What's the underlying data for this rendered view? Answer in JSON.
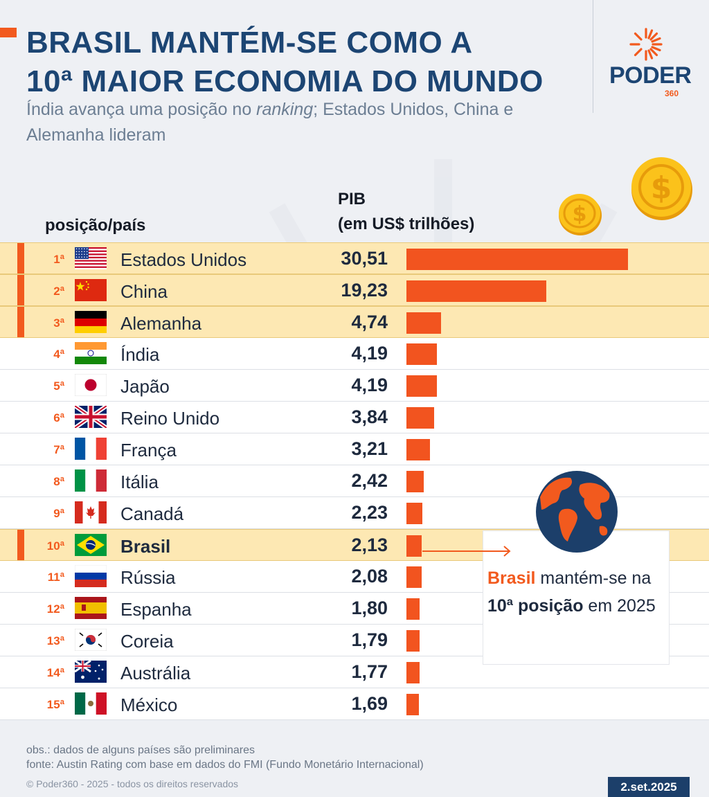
{
  "header": {
    "title_line1": "BRASIL MANTÉM-SE COMO A",
    "title_line2": "10ª MAIOR ECONOMIA DO MUNDO",
    "subtitle_part1": "Índia avança uma posição no ",
    "subtitle_em": "ranking",
    "subtitle_part2": "; Estados Unidos, China e Alemanha lideram"
  },
  "brand": {
    "name": "PODER",
    "number": "360",
    "color": "#f25a1e"
  },
  "icons": [
    "coin-dollar-icon",
    "globe-icon",
    "arrow-right-icon",
    "sun-logo-icon"
  ],
  "chart_data": {
    "type": "bar",
    "orientation": "horizontal",
    "column_headers": {
      "country": "posição/país",
      "value_line1": "PIB",
      "value_line2": "(em US$ trilhões)"
    },
    "categories": [
      "Estados Unidos",
      "China",
      "Alemanha",
      "Índia",
      "Japão",
      "Reino Unido",
      "França",
      "Itália",
      "Canadá",
      "Brasil",
      "Rússia",
      "Espanha",
      "Coreia",
      "Austrália",
      "México"
    ],
    "ranks": [
      "1ª",
      "2ª",
      "3ª",
      "4ª",
      "5ª",
      "6ª",
      "7ª",
      "8ª",
      "9ª",
      "10ª",
      "11ª",
      "12ª",
      "13ª",
      "14ª",
      "15ª"
    ],
    "values": [
      30.51,
      19.23,
      4.74,
      4.19,
      4.19,
      3.84,
      3.21,
      2.42,
      2.23,
      2.13,
      2.08,
      1.8,
      1.79,
      1.77,
      1.69
    ],
    "value_labels": [
      "30,51",
      "19,23",
      "4,74",
      "4,19",
      "4,19",
      "3,84",
      "3,21",
      "2,42",
      "2,23",
      "2,13",
      "2,08",
      "1,80",
      "1,79",
      "1,77",
      "1,69"
    ],
    "highlighted": [
      "Estados Unidos",
      "China",
      "Alemanha",
      "Brasil"
    ],
    "bar_color": "#f2541f",
    "highlight_color": "#fde8b3"
  },
  "callout": {
    "part1": "Brasil",
    "part2": " mantém-se na ",
    "part3": "10ª posição",
    "part4": " em 2025"
  },
  "footer": {
    "note": "obs.: dados de alguns países são preliminares",
    "source": "fonte: Austin Rating com base em dados do FMI (Fundo Monetário Internacional)",
    "copyright": "© Poder360 - 2025 - todos os direitos reservados",
    "date": "2.set.2025"
  }
}
